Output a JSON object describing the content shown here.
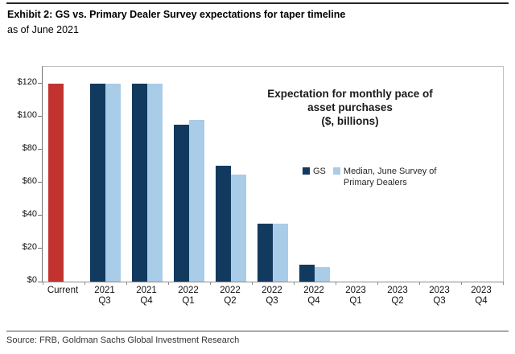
{
  "header": {
    "title": "Exhibit 2: GS vs. Primary Dealer Survey expectations for taper timeline",
    "subtitle": "as of June 2021"
  },
  "footer": {
    "source": "Source: FRB, Goldman Sachs Global Investment Research"
  },
  "chart_data": {
    "type": "bar",
    "title": "Expectation for monthly pace of asset purchases ($, billions)",
    "annotation_lines": [
      "Expectation for monthly pace of",
      "asset purchases",
      "($, billions)"
    ],
    "categories": [
      "Current",
      "2021 Q3",
      "2021 Q4",
      "2022 Q1",
      "2022 Q2",
      "2022 Q3",
      "2022 Q4",
      "2023 Q1",
      "2023 Q2",
      "2023 Q3",
      "2023 Q4"
    ],
    "series": [
      {
        "name": "GS",
        "color": "#123a5f",
        "values": [
          120,
          120,
          120,
          95,
          70,
          35,
          10,
          0,
          0,
          0,
          0
        ]
      },
      {
        "name": "Median, June Survey of Primary Dealers",
        "color": "#a9cce8",
        "values": [
          null,
          120,
          120,
          98,
          65,
          35,
          9,
          0,
          0,
          0,
          0
        ]
      }
    ],
    "category_color_overrides": {
      "0": "#c2332f"
    },
    "current_bar": {
      "category": "Current",
      "value": 120,
      "color": "#c2332f"
    },
    "xlabel": "",
    "ylabel": "",
    "ylim": [
      0,
      130
    ],
    "y_ticks": [
      0,
      20,
      40,
      60,
      80,
      100,
      120
    ],
    "y_tick_labels": [
      "$0",
      "$20",
      "$40",
      "$60",
      "$80",
      "$100",
      "$120"
    ],
    "grid": false,
    "legend_position": "center-right"
  }
}
